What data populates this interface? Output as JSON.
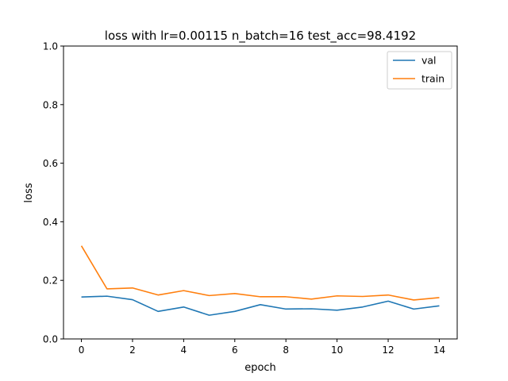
{
  "chart_data": {
    "type": "line",
    "title": "loss with lr=0.00115 n_batch=16 test_acc=98.4192",
    "xlabel": "epoch",
    "ylabel": "loss",
    "xlim": [
      -0.7,
      14.7
    ],
    "ylim": [
      0.0,
      1.0
    ],
    "xticks": [
      0,
      2,
      4,
      6,
      8,
      10,
      12,
      14
    ],
    "yticks": [
      0.0,
      0.2,
      0.4,
      0.6,
      0.8,
      1.0
    ],
    "xtick_labels": [
      "0",
      "2",
      "4",
      "6",
      "8",
      "10",
      "12",
      "14"
    ],
    "ytick_labels": [
      "0.0",
      "0.2",
      "0.4",
      "0.6",
      "0.8",
      "1.0"
    ],
    "grid": false,
    "legend_position": "top-right",
    "x": [
      0,
      1,
      2,
      3,
      4,
      5,
      6,
      7,
      8,
      9,
      10,
      11,
      12,
      13,
      14
    ],
    "series": [
      {
        "name": "val",
        "color": "#1f77b4",
        "values": [
          0.143,
          0.146,
          0.134,
          0.094,
          0.109,
          0.081,
          0.094,
          0.117,
          0.102,
          0.103,
          0.098,
          0.109,
          0.129,
          0.102,
          0.113
        ]
      },
      {
        "name": "train",
        "color": "#ff7f0e",
        "values": [
          0.318,
          0.171,
          0.174,
          0.15,
          0.165,
          0.148,
          0.155,
          0.144,
          0.144,
          0.136,
          0.147,
          0.145,
          0.15,
          0.133,
          0.141
        ]
      }
    ]
  }
}
